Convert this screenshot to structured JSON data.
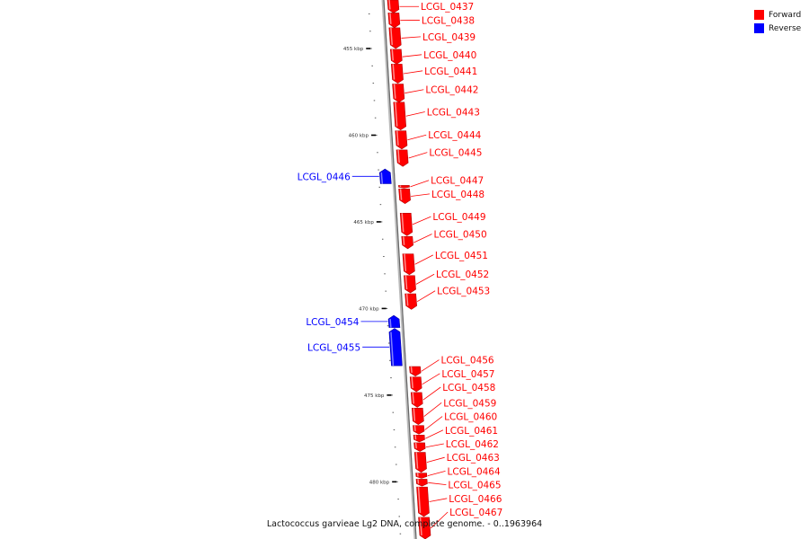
{
  "colors": {
    "forward": "#ff0000",
    "reverse": "#0000ff",
    "backbone": "#999999"
  },
  "legend": [
    {
      "label": "Forward",
      "color": "#ff0000"
    },
    {
      "label": "Reverse",
      "color": "#0000ff"
    }
  ],
  "caption": "Lactococcus garvieae Lg2 DNA, complete genome. - 0..1963964",
  "view": {
    "start_kbp": 452.2,
    "end_kbp": 483.3
  },
  "ticks": [
    {
      "kbp": 455,
      "label": "455 kbp"
    },
    {
      "kbp": 460,
      "label": "460 kbp"
    },
    {
      "kbp": 465,
      "label": "465 kbp"
    },
    {
      "kbp": 470,
      "label": "470 kbp"
    },
    {
      "kbp": 475,
      "label": "475 kbp"
    },
    {
      "kbp": 480,
      "label": "480 kbp"
    }
  ],
  "genes": [
    {
      "name": "LCGL_0437",
      "strand": "forward",
      "start_kbp": 452.2,
      "end_kbp": 452.95
    },
    {
      "name": "LCGL_0438",
      "strand": "forward",
      "start_kbp": 452.95,
      "end_kbp": 453.8
    },
    {
      "name": "LCGL_0439",
      "strand": "forward",
      "start_kbp": 453.8,
      "end_kbp": 455.0
    },
    {
      "name": "LCGL_0440",
      "strand": "forward",
      "start_kbp": 455.05,
      "end_kbp": 455.9
    },
    {
      "name": "LCGL_0441",
      "strand": "forward",
      "start_kbp": 455.9,
      "end_kbp": 457.0
    },
    {
      "name": "LCGL_0442",
      "strand": "forward",
      "start_kbp": 457.05,
      "end_kbp": 458.1
    },
    {
      "name": "LCGL_0443",
      "strand": "forward",
      "start_kbp": 458.1,
      "end_kbp": 459.7
    },
    {
      "name": "LCGL_0444",
      "strand": "forward",
      "start_kbp": 459.75,
      "end_kbp": 460.8
    },
    {
      "name": "LCGL_0445",
      "strand": "forward",
      "start_kbp": 460.85,
      "end_kbp": 461.8
    },
    {
      "name": "LCGL_0446",
      "strand": "reverse",
      "start_kbp": 461.95,
      "end_kbp": 462.8
    },
    {
      "name": "LCGL_0447",
      "strand": "forward",
      "start_kbp": 462.9,
      "end_kbp": 463.05
    },
    {
      "name": "LCGL_0448",
      "strand": "forward",
      "start_kbp": 463.1,
      "end_kbp": 463.95
    },
    {
      "name": "LCGL_0449",
      "strand": "forward",
      "start_kbp": 464.5,
      "end_kbp": 465.8
    },
    {
      "name": "LCGL_0450",
      "strand": "forward",
      "start_kbp": 465.85,
      "end_kbp": 466.55
    },
    {
      "name": "LCGL_0451",
      "strand": "forward",
      "start_kbp": 466.85,
      "end_kbp": 468.05
    },
    {
      "name": "LCGL_0452",
      "strand": "forward",
      "start_kbp": 468.1,
      "end_kbp": 469.1
    },
    {
      "name": "LCGL_0453",
      "strand": "forward",
      "start_kbp": 469.15,
      "end_kbp": 470.05
    },
    {
      "name": "LCGL_0454",
      "strand": "reverse",
      "start_kbp": 470.4,
      "end_kbp": 471.1
    },
    {
      "name": "LCGL_0455",
      "strand": "reverse",
      "start_kbp": 471.15,
      "end_kbp": 473.3
    },
    {
      "name": "LCGL_0456",
      "strand": "forward",
      "start_kbp": 473.35,
      "end_kbp": 473.9
    },
    {
      "name": "LCGL_0457",
      "strand": "forward",
      "start_kbp": 473.95,
      "end_kbp": 474.8
    },
    {
      "name": "LCGL_0458",
      "strand": "forward",
      "start_kbp": 474.85,
      "end_kbp": 475.7
    },
    {
      "name": "LCGL_0459",
      "strand": "forward",
      "start_kbp": 475.75,
      "end_kbp": 476.7
    },
    {
      "name": "LCGL_0460",
      "strand": "forward",
      "start_kbp": 476.75,
      "end_kbp": 477.25
    },
    {
      "name": "LCGL_0461",
      "strand": "forward",
      "start_kbp": 477.3,
      "end_kbp": 477.7
    },
    {
      "name": "LCGL_0462",
      "strand": "forward",
      "start_kbp": 477.75,
      "end_kbp": 478.25
    },
    {
      "name": "LCGL_0463",
      "strand": "forward",
      "start_kbp": 478.3,
      "end_kbp": 479.45
    },
    {
      "name": "LCGL_0464",
      "strand": "forward",
      "start_kbp": 479.5,
      "end_kbp": 479.8
    },
    {
      "name": "LCGL_0465",
      "strand": "forward",
      "start_kbp": 479.85,
      "end_kbp": 480.25
    },
    {
      "name": "LCGL_0466",
      "strand": "forward",
      "start_kbp": 480.3,
      "end_kbp": 482.0
    },
    {
      "name": "LCGL_0467",
      "strand": "forward",
      "start_kbp": 482.05,
      "end_kbp": 483.3
    }
  ]
}
